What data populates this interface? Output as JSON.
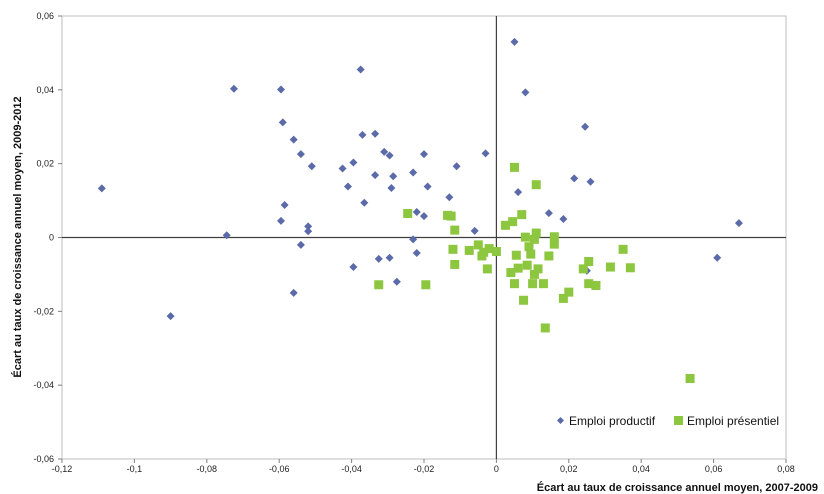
{
  "chart_data": {
    "type": "scatter",
    "title": "",
    "xlabel": "Écart au taux de croissance annuel moyen, 2007-2009",
    "ylabel": "Écart au taux de croissance annuel moyen, 2009-2012",
    "xlim": [
      -0.12,
      0.08
    ],
    "ylim": [
      -0.06,
      0.06
    ],
    "x_ticks": [
      -0.12,
      -0.1,
      -0.08,
      -0.06,
      -0.04,
      -0.02,
      0,
      0.02,
      0.04,
      0.06,
      0.08
    ],
    "y_ticks": [
      -0.06,
      -0.04,
      -0.02,
      0,
      0.02,
      0.04,
      0.06
    ],
    "x_tick_labels": [
      "-0,12",
      "-0,1",
      "-0,08",
      "-0,06",
      "-0,04",
      "-0,02",
      "0",
      "0,02",
      "0,04",
      "0,06",
      "0,08"
    ],
    "y_tick_labels": [
      "-0,06",
      "-0,04",
      "-0,02",
      "0",
      "0,02",
      "0,04",
      "0,06"
    ],
    "grid": false,
    "legend_position": "bottom-right",
    "series": [
      {
        "name": "Emploi productif",
        "color": "#5b6aa8",
        "marker": "diamond",
        "points": [
          [
            -0.109,
            0.0133
          ],
          [
            -0.09,
            -0.0213
          ],
          [
            -0.0725,
            0.0403
          ],
          [
            -0.0745,
            0.0006
          ],
          [
            -0.0595,
            0.0401
          ],
          [
            -0.059,
            0.0312
          ],
          [
            -0.0595,
            0.0045
          ],
          [
            -0.0585,
            0.0088
          ],
          [
            -0.056,
            0.0265
          ],
          [
            -0.054,
            0.0226
          ],
          [
            -0.051,
            0.0193
          ],
          [
            -0.052,
            0.003
          ],
          [
            -0.052,
            0.0017
          ],
          [
            -0.054,
            -0.002
          ],
          [
            -0.056,
            -0.015
          ],
          [
            -0.0375,
            0.0455
          ],
          [
            -0.037,
            0.0278
          ],
          [
            -0.0335,
            0.0281
          ],
          [
            -0.031,
            0.0232
          ],
          [
            -0.0295,
            0.0222
          ],
          [
            -0.0395,
            0.0203
          ],
          [
            -0.0425,
            0.0187
          ],
          [
            -0.0335,
            0.0169
          ],
          [
            -0.0285,
            0.0166
          ],
          [
            -0.041,
            0.0138
          ],
          [
            -0.029,
            0.0134
          ],
          [
            -0.0365,
            0.0094
          ],
          [
            -0.0395,
            -0.008
          ],
          [
            -0.0325,
            -0.0058
          ],
          [
            -0.0295,
            -0.0055
          ],
          [
            -0.0275,
            -0.012
          ],
          [
            -0.02,
            0.0226
          ],
          [
            -0.023,
            0.0176
          ],
          [
            -0.019,
            0.0138
          ],
          [
            -0.022,
            0.0069
          ],
          [
            -0.02,
            0.0058
          ],
          [
            -0.023,
            -0.0005
          ],
          [
            -0.022,
            -0.0042
          ],
          [
            -0.011,
            0.0193
          ],
          [
            -0.013,
            0.0109
          ],
          [
            -0.006,
            0.0018
          ],
          [
            -0.003,
            0.0228
          ],
          [
            0.005,
            0.053
          ],
          [
            0.008,
            0.0393
          ],
          [
            0.0245,
            0.03
          ],
          [
            0.0215,
            0.016
          ],
          [
            0.026,
            0.0151
          ],
          [
            0.006,
            0.0123
          ],
          [
            0.0145,
            0.0066
          ],
          [
            0.0185,
            0.005
          ],
          [
            0.025,
            -0.009
          ],
          [
            0.061,
            -0.0055
          ],
          [
            0.067,
            0.0039
          ]
        ]
      },
      {
        "name": "Emploi présentiel",
        "color": "#8dc63f",
        "marker": "square",
        "points": [
          [
            -0.0325,
            -0.0128
          ],
          [
            -0.0195,
            -0.0128
          ],
          [
            -0.0245,
            0.0065
          ],
          [
            -0.0135,
            0.006
          ],
          [
            -0.0125,
            0.0058
          ],
          [
            -0.0115,
            0.002
          ],
          [
            -0.012,
            -0.0032
          ],
          [
            -0.0115,
            -0.0073
          ],
          [
            -0.0075,
            -0.0035
          ],
          [
            -0.005,
            -0.002
          ],
          [
            -0.0035,
            -0.004
          ],
          [
            -0.004,
            -0.005
          ],
          [
            -0.002,
            -0.003
          ],
          [
            -0.0025,
            -0.0085
          ],
          [
            0.0,
            -0.0038
          ],
          [
            0.0025,
            0.0033
          ],
          [
            0.0045,
            0.0043
          ],
          [
            0.005,
            0.019
          ],
          [
            0.007,
            0.0062
          ],
          [
            0.0055,
            -0.0048
          ],
          [
            0.004,
            -0.0095
          ],
          [
            0.006,
            -0.0083
          ],
          [
            0.005,
            -0.0125
          ],
          [
            0.0075,
            -0.017
          ],
          [
            0.008,
            0.0001
          ],
          [
            0.0085,
            -0.0075
          ],
          [
            0.009,
            -0.0025
          ],
          [
            0.0095,
            -0.0045
          ],
          [
            0.0105,
            -0.0005
          ],
          [
            0.011,
            0.0012
          ],
          [
            0.011,
            0.0143
          ],
          [
            0.0105,
            -0.01
          ],
          [
            0.01,
            -0.0125
          ],
          [
            0.0115,
            -0.0085
          ],
          [
            0.013,
            -0.0125
          ],
          [
            0.0135,
            -0.0245
          ],
          [
            0.0145,
            -0.005
          ],
          [
            0.016,
            0.0002
          ],
          [
            0.016,
            -0.0018
          ],
          [
            0.0185,
            -0.0165
          ],
          [
            0.02,
            -0.0148
          ],
          [
            0.024,
            -0.0085
          ],
          [
            0.0255,
            -0.0065
          ],
          [
            0.0255,
            -0.0125
          ],
          [
            0.0275,
            -0.013
          ],
          [
            0.0315,
            -0.008
          ],
          [
            0.035,
            -0.0032
          ],
          [
            0.037,
            -0.0082
          ],
          [
            0.0535,
            -0.0382
          ]
        ]
      }
    ]
  }
}
